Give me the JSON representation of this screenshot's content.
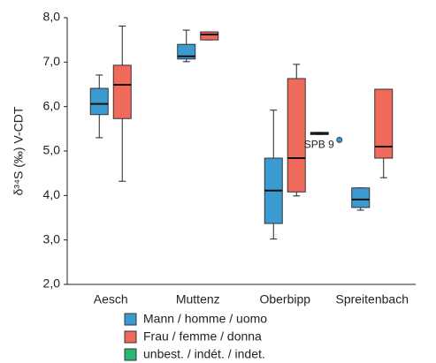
{
  "chart_data": {
    "type": "box",
    "ylabel": "δ³⁴S (‰) V-CDT",
    "categories": [
      "Aesch",
      "Muttenz",
      "Oberbipp",
      "Spreitenbach"
    ],
    "ylim": [
      2.0,
      8.0
    ],
    "yticks": [
      {
        "value": 2,
        "label": "2,0"
      },
      {
        "value": 3,
        "label": "3,0"
      },
      {
        "value": 4,
        "label": "4,0"
      },
      {
        "value": 5,
        "label": "5,0"
      },
      {
        "value": 6,
        "label": "6,0"
      },
      {
        "value": 7,
        "label": "7,0"
      },
      {
        "value": 8,
        "label": "8,0"
      }
    ],
    "series": [
      {
        "name": "Mann / homme / uomo",
        "color": "#3b9bd0",
        "low": [
          5.3,
          7.01,
          3.02,
          3.67
        ],
        "q1": [
          5.82,
          7.07,
          3.37,
          3.73
        ],
        "median": [
          6.06,
          7.13,
          4.11,
          3.91
        ],
        "q3": [
          6.41,
          7.4,
          4.84,
          4.17
        ],
        "high": [
          6.71,
          7.72,
          5.92,
          4.17
        ]
      },
      {
        "name": "Frau / femme / donna",
        "color": "#ef6a5a",
        "low": [
          4.32,
          7.5,
          3.99,
          4.4
        ],
        "q1": [
          5.73,
          7.5,
          4.08,
          4.84
        ],
        "median": [
          6.49,
          7.62,
          4.84,
          5.1
        ],
        "q3": [
          6.93,
          7.68,
          6.63,
          6.39
        ],
        "high": [
          7.81,
          7.68,
          6.95,
          6.39
        ]
      },
      {
        "name": "unbest. / indét. / indet.",
        "color": "#2bb673",
        "low": [
          null,
          null,
          5.37,
          null
        ],
        "q1": [
          null,
          null,
          5.37,
          null
        ],
        "median": [
          null,
          null,
          5.4,
          null
        ],
        "q3": [
          null,
          null,
          5.42,
          null
        ],
        "high": [
          null,
          null,
          5.42,
          null
        ]
      }
    ],
    "points": [
      {
        "category": "Spreitenbach",
        "value": 5.25,
        "label": "SPB 9"
      }
    ]
  }
}
